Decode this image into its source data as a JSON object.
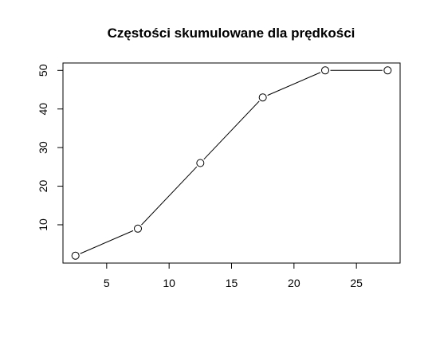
{
  "chart_data": {
    "type": "line",
    "title": "Częstości skumulowane dla prędkości",
    "xlabel": "",
    "ylabel": "",
    "x": [
      2.5,
      7.5,
      12.5,
      17.5,
      22.5,
      27.5
    ],
    "series": [
      {
        "values": [
          2,
          9,
          26,
          43,
          50,
          50
        ]
      }
    ],
    "xlim": [
      1.5,
      28.5
    ],
    "ylim": [
      0.08,
      51.92
    ],
    "xticks": [
      5,
      10,
      15,
      20,
      25
    ],
    "yticks": [
      10,
      20,
      30,
      40,
      50
    ],
    "markers": "open-circle",
    "grid": false,
    "legend": "none"
  }
}
